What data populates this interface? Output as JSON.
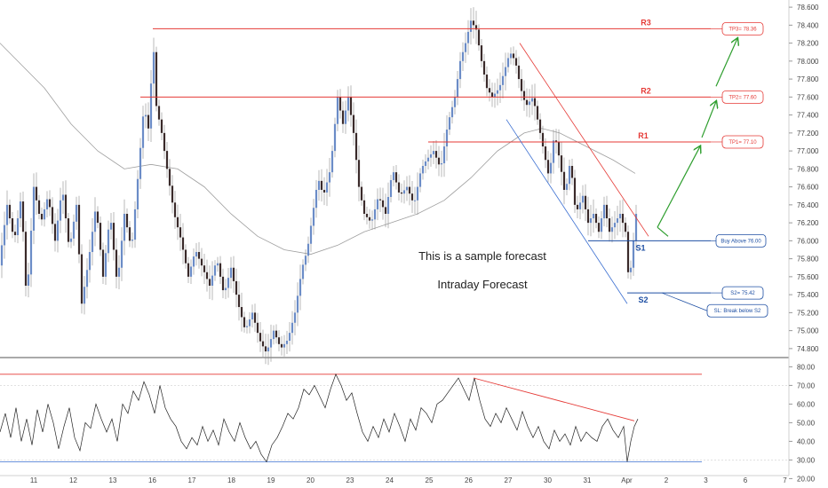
{
  "chart_data": [
    {
      "type": "candlestick",
      "name_visible": false,
      "title": "",
      "ylim": [
        74.7,
        78.68
      ],
      "y_ticks": [
        "78.600",
        "78.400",
        "78.200",
        "78.000",
        "77.800",
        "77.600",
        "77.400",
        "77.200",
        "77.000",
        "76.800",
        "76.600",
        "76.400",
        "76.200",
        "76.000",
        "75.800",
        "75.600",
        "75.400",
        "75.200",
        "75.000",
        "74.800"
      ],
      "x_ticks": [
        "11",
        "12",
        "13",
        "16",
        "17",
        "18",
        "19",
        "20",
        "23",
        "24",
        "25",
        "26",
        "27",
        "30",
        "31",
        "Apr",
        "2",
        "3",
        "6",
        "7"
      ],
      "price_path": [
        [
          0,
          75.8
        ],
        [
          8,
          76.4
        ],
        [
          16,
          76.0
        ],
        [
          24,
          76.5
        ],
        [
          30,
          75.3
        ],
        [
          38,
          76.6
        ],
        [
          46,
          76.2
        ],
        [
          54,
          76.5
        ],
        [
          62,
          76.0
        ],
        [
          70,
          76.6
        ],
        [
          78,
          75.9
        ],
        [
          86,
          76.4
        ],
        [
          92,
          75.3
        ],
        [
          100,
          75.8
        ],
        [
          108,
          76.4
        ],
        [
          116,
          75.6
        ],
        [
          124,
          76.3
        ],
        [
          132,
          75.5
        ],
        [
          140,
          76.3
        ],
        [
          148,
          75.9
        ],
        [
          156,
          76.8
        ],
        [
          162,
          77.5
        ],
        [
          168,
          77.2
        ],
        [
          172,
          78.3
        ],
        [
          176,
          77.5
        ],
        [
          182,
          77.2
        ],
        [
          188,
          76.8
        ],
        [
          196,
          76.3
        ],
        [
          204,
          76.0
        ],
        [
          212,
          75.6
        ],
        [
          220,
          75.9
        ],
        [
          228,
          75.7
        ],
        [
          236,
          75.5
        ],
        [
          244,
          75.8
        ],
        [
          252,
          75.4
        ],
        [
          260,
          75.7
        ],
        [
          268,
          75.3
        ],
        [
          276,
          75.0
        ],
        [
          284,
          75.2
        ],
        [
          292,
          74.9
        ],
        [
          300,
          74.75
        ],
        [
          308,
          75.0
        ],
        [
          316,
          74.8
        ],
        [
          324,
          74.9
        ],
        [
          332,
          75.2
        ],
        [
          340,
          75.7
        ],
        [
          346,
          75.9
        ],
        [
          352,
          76.3
        ],
        [
          358,
          76.7
        ],
        [
          364,
          76.5
        ],
        [
          372,
          76.8
        ],
        [
          380,
          77.6
        ],
        [
          386,
          77.3
        ],
        [
          392,
          77.6
        ],
        [
          398,
          77.2
        ],
        [
          404,
          76.6
        ],
        [
          410,
          76.3
        ],
        [
          418,
          76.2
        ],
        [
          426,
          76.5
        ],
        [
          434,
          76.3
        ],
        [
          442,
          76.8
        ],
        [
          450,
          76.5
        ],
        [
          458,
          76.6
        ],
        [
          466,
          76.4
        ],
        [
          474,
          76.8
        ],
        [
          480,
          76.9
        ],
        [
          488,
          77.0
        ],
        [
          496,
          76.8
        ],
        [
          504,
          77.3
        ],
        [
          512,
          77.6
        ],
        [
          518,
          78.0
        ],
        [
          524,
          78.2
        ],
        [
          530,
          78.45
        ],
        [
          536,
          78.35
        ],
        [
          542,
          78.0
        ],
        [
          548,
          77.7
        ],
        [
          554,
          77.6
        ],
        [
          562,
          77.7
        ],
        [
          568,
          77.9
        ],
        [
          574,
          78.1
        ],
        [
          580,
          78.0
        ],
        [
          586,
          77.7
        ],
        [
          592,
          77.5
        ],
        [
          600,
          77.6
        ],
        [
          606,
          77.3
        ],
        [
          612,
          77.0
        ],
        [
          618,
          76.7
        ],
        [
          624,
          77.2
        ],
        [
          630,
          76.9
        ],
        [
          636,
          76.5
        ],
        [
          642,
          76.9
        ],
        [
          648,
          76.3
        ],
        [
          656,
          76.5
        ],
        [
          662,
          76.2
        ],
        [
          668,
          76.3
        ],
        [
          674,
          76.1
        ],
        [
          680,
          76.4
        ],
        [
          686,
          76.1
        ],
        [
          692,
          76.2
        ],
        [
          698,
          76.3
        ],
        [
          704,
          76.1
        ],
        [
          708,
          75.5
        ],
        [
          712,
          75.9
        ],
        [
          716,
          76.3
        ],
        [
          720,
          76.45
        ]
      ],
      "moving_average_path": [
        [
          0,
          78.2
        ],
        [
          20,
          78.0
        ],
        [
          50,
          77.7
        ],
        [
          80,
          77.3
        ],
        [
          110,
          77.0
        ],
        [
          140,
          76.8
        ],
        [
          170,
          76.85
        ],
        [
          200,
          76.8
        ],
        [
          230,
          76.6
        ],
        [
          260,
          76.3
        ],
        [
          290,
          76.05
        ],
        [
          320,
          75.9
        ],
        [
          350,
          75.85
        ],
        [
          380,
          75.95
        ],
        [
          410,
          76.1
        ],
        [
          440,
          76.2
        ],
        [
          470,
          76.3
        ],
        [
          500,
          76.45
        ],
        [
          530,
          76.7
        ],
        [
          560,
          77.0
        ],
        [
          590,
          77.2
        ],
        [
          610,
          77.25
        ],
        [
          630,
          77.2
        ],
        [
          650,
          77.1
        ],
        [
          670,
          77.0
        ],
        [
          690,
          76.9
        ],
        [
          715,
          76.75
        ]
      ],
      "levels": [
        {
          "label": "R3",
          "value": 78.36,
          "callout": "TP3= 78.36",
          "color": "#e53935"
        },
        {
          "label": "R2",
          "value": 77.6,
          "callout": "TP2= 77.60",
          "color": "#e53935"
        },
        {
          "label": "R1",
          "value": 77.1,
          "callout": "TP1= 77.10",
          "color": "#e53935"
        },
        {
          "label": "S1",
          "value": 76.0,
          "callout": "Buy Above 76.00",
          "color": "#1e4fa3"
        },
        {
          "label": "S2",
          "value": 75.42,
          "callout": "S2= 75.42",
          "color": "#1e4fa3"
        }
      ],
      "stop_loss": {
        "value": 75.3,
        "callout": "SL: Break below S2"
      },
      "channel": {
        "upper": {
          "from_x": 585,
          "from_y": 78.2,
          "to_x": 730,
          "to_y": 76.05
        },
        "lower": {
          "from_x": 570,
          "from_y": 77.35,
          "to_x": 706,
          "to_y": 75.3
        }
      },
      "forecast_arrows": [
        {
          "from_x": 740,
          "from_y": 76.15,
          "to_x": 788,
          "to_y": 77.05
        },
        {
          "from_x": 790,
          "from_y": 77.15,
          "to_x": 806,
          "to_y": 77.55
        },
        {
          "from_x": 806,
          "from_y": 77.72,
          "to_x": 830,
          "to_y": 78.25
        }
      ],
      "annotations": [
        "This is a sample forecast",
        "Intraday Forecast"
      ]
    },
    {
      "type": "line",
      "indicator": "oscillator",
      "ylim": [
        24,
        84
      ],
      "y_ticks": [
        "80.00",
        "70.00",
        "60.00",
        "50.00",
        "40.00",
        "30.00",
        "20.00"
      ],
      "overbought": 76,
      "oversold": 29,
      "trendline": {
        "from_x": 533,
        "from_y": 74,
        "to_x": 714,
        "to_y": 51
      },
      "path": [
        [
          0,
          45
        ],
        [
          6,
          55
        ],
        [
          12,
          42
        ],
        [
          18,
          58
        ],
        [
          24,
          40
        ],
        [
          30,
          52
        ],
        [
          36,
          38
        ],
        [
          42,
          57
        ],
        [
          48,
          45
        ],
        [
          54,
          60
        ],
        [
          60,
          50
        ],
        [
          66,
          36
        ],
        [
          72,
          48
        ],
        [
          78,
          58
        ],
        [
          84,
          42
        ],
        [
          90,
          35
        ],
        [
          96,
          50
        ],
        [
          102,
          47
        ],
        [
          108,
          60
        ],
        [
          114,
          52
        ],
        [
          120,
          45
        ],
        [
          126,
          52
        ],
        [
          132,
          40
        ],
        [
          138,
          60
        ],
        [
          144,
          55
        ],
        [
          150,
          67
        ],
        [
          156,
          62
        ],
        [
          162,
          72
        ],
        [
          168,
          65
        ],
        [
          174,
          55
        ],
        [
          180,
          70
        ],
        [
          186,
          58
        ],
        [
          192,
          52
        ],
        [
          198,
          48
        ],
        [
          204,
          40
        ],
        [
          210,
          36
        ],
        [
          216,
          42
        ],
        [
          222,
          38
        ],
        [
          228,
          48
        ],
        [
          234,
          40
        ],
        [
          240,
          46
        ],
        [
          246,
          38
        ],
        [
          252,
          52
        ],
        [
          258,
          45
        ],
        [
          264,
          40
        ],
        [
          270,
          50
        ],
        [
          276,
          42
        ],
        [
          282,
          36
        ],
        [
          288,
          40
        ],
        [
          294,
          33
        ],
        [
          300,
          29
        ],
        [
          306,
          38
        ],
        [
          312,
          42
        ],
        [
          318,
          48
        ],
        [
          324,
          55
        ],
        [
          330,
          52
        ],
        [
          336,
          58
        ],
        [
          342,
          68
        ],
        [
          348,
          65
        ],
        [
          354,
          70
        ],
        [
          360,
          64
        ],
        [
          366,
          58
        ],
        [
          372,
          68
        ],
        [
          378,
          76
        ],
        [
          384,
          70
        ],
        [
          390,
          62
        ],
        [
          396,
          66
        ],
        [
          402,
          55
        ],
        [
          408,
          45
        ],
        [
          414,
          40
        ],
        [
          420,
          48
        ],
        [
          426,
          42
        ],
        [
          432,
          52
        ],
        [
          438,
          45
        ],
        [
          444,
          55
        ],
        [
          450,
          48
        ],
        [
          456,
          40
        ],
        [
          462,
          52
        ],
        [
          468,
          46
        ],
        [
          474,
          58
        ],
        [
          480,
          55
        ],
        [
          486,
          50
        ],
        [
          492,
          60
        ],
        [
          498,
          62
        ],
        [
          504,
          66
        ],
        [
          510,
          70
        ],
        [
          516,
          74
        ],
        [
          522,
          68
        ],
        [
          528,
          62
        ],
        [
          534,
          74
        ],
        [
          540,
          62
        ],
        [
          546,
          52
        ],
        [
          552,
          48
        ],
        [
          558,
          55
        ],
        [
          564,
          50
        ],
        [
          570,
          58
        ],
        [
          576,
          52
        ],
        [
          582,
          46
        ],
        [
          588,
          56
        ],
        [
          594,
          48
        ],
        [
          600,
          42
        ],
        [
          606,
          48
        ],
        [
          612,
          40
        ],
        [
          618,
          36
        ],
        [
          624,
          46
        ],
        [
          630,
          40
        ],
        [
          636,
          44
        ],
        [
          642,
          38
        ],
        [
          648,
          48
        ],
        [
          654,
          40
        ],
        [
          660,
          45
        ],
        [
          666,
          42
        ],
        [
          672,
          40
        ],
        [
          678,
          48
        ],
        [
          684,
          52
        ],
        [
          690,
          46
        ],
        [
          696,
          42
        ],
        [
          702,
          48
        ],
        [
          706,
          29
        ],
        [
          710,
          40
        ],
        [
          714,
          48
        ],
        [
          718,
          52
        ]
      ]
    }
  ]
}
